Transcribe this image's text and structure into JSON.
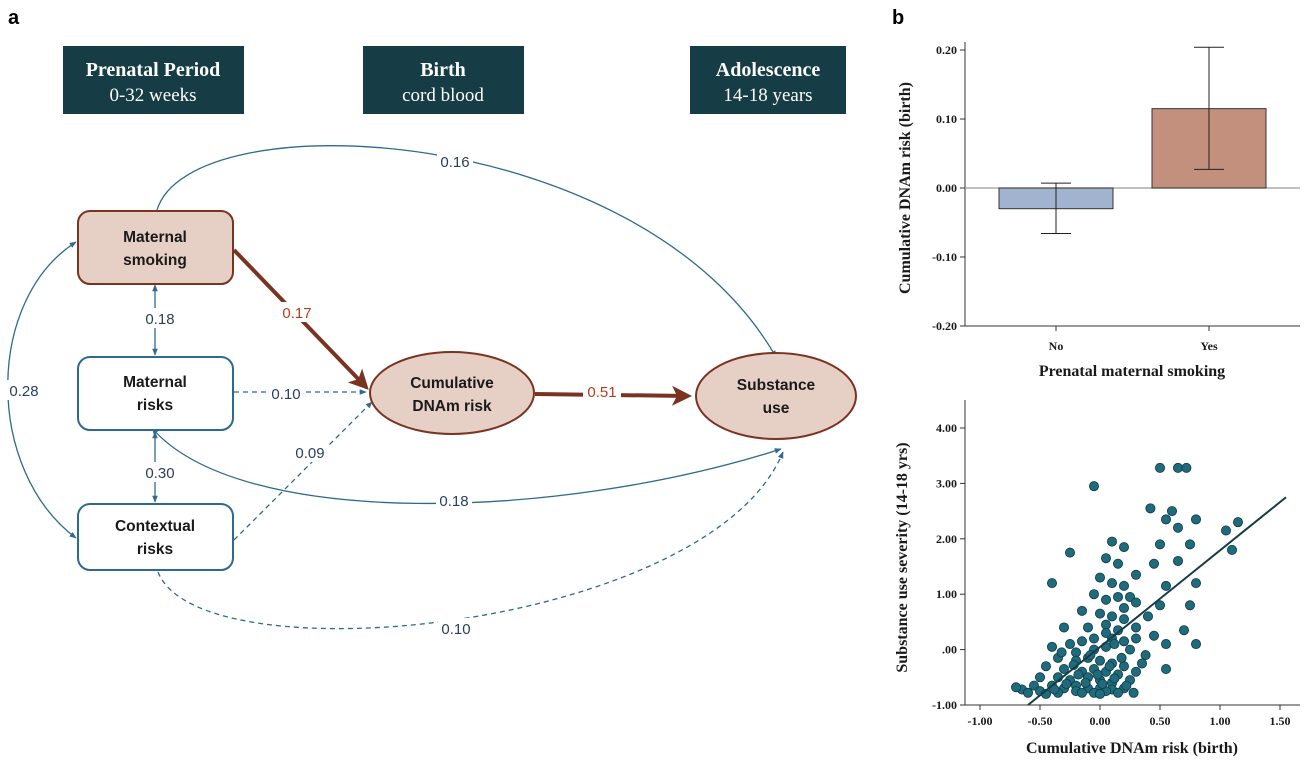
{
  "panels": {
    "a_label": "a",
    "b_label": "b"
  },
  "periods": [
    {
      "title": "Prenatal Period",
      "subtitle": "0-32 weeks"
    },
    {
      "title": "Birth",
      "subtitle": "cord blood"
    },
    {
      "title": "Adolescence",
      "subtitle": "14-18 years"
    }
  ],
  "nodes": {
    "maternal_smoking": [
      "Maternal",
      "smoking"
    ],
    "maternal_risks": [
      "Maternal",
      "risks"
    ],
    "contextual_risks": [
      "Contextual",
      "risks"
    ],
    "cumulative_dnam": [
      "Cumulative",
      "DNAm risk"
    ],
    "substance_use": [
      "Substance",
      "use"
    ]
  },
  "paths": {
    "smoking_to_substance": "0.16",
    "smoking_to_dnam": "0.17",
    "smoking_maternal_cov": "0.18",
    "smoking_contextual_cov": "0.28",
    "maternal_to_dnam": "0.10",
    "maternal_contextual_cov": "0.30",
    "contextual_to_dnam": "0.09",
    "maternal_to_substance": "0.18",
    "dnam_to_substance": "0.51",
    "contextual_to_substance": "0.10"
  },
  "colors": {
    "period_box": "#163d45",
    "red_node_fill": "#e6cfc4",
    "red_stroke": "#7b3321",
    "blue_stroke": "#2e6a8e",
    "bar_no": "#a2b3d0",
    "bar_yes": "#c3907d",
    "point": "#1f6b7c"
  },
  "chart_data": [
    {
      "type": "bar",
      "categories": [
        "No",
        "Yes"
      ],
      "values": [
        -0.03,
        0.115
      ],
      "error_low": [
        -0.066,
        0.027
      ],
      "error_high": [
        0.007,
        0.204
      ],
      "xlabel": "Prenatal maternal smoking",
      "ylabel": "Cumulative DNAm risk (birth)",
      "ylim": [
        -0.2,
        0.2
      ],
      "yticks": [
        "0.20",
        "0.10",
        "0.00",
        "-0.10",
        "-0.20"
      ],
      "grid": false
    },
    {
      "type": "scatter",
      "xlabel": "Cumulative DNAm risk (birth)",
      "ylabel": "Substance use severity (14-18 yrs)",
      "xlim": [
        -1.0,
        1.5
      ],
      "ylim": [
        -1.0,
        4.0
      ],
      "xticks": [
        "-1.00",
        "-0.50",
        "0.00",
        "0.50",
        "1.00",
        "1.50"
      ],
      "yticks": [
        "4.00",
        "3.00",
        "2.00",
        "1.00",
        ".00",
        "-1.00"
      ],
      "fit_line": [
        [
          -0.6,
          -1.0
        ],
        [
          1.55,
          2.75
        ]
      ],
      "points": [
        [
          0.5,
          3.28
        ],
        [
          0.65,
          3.28
        ],
        [
          0.72,
          3.28
        ],
        [
          -0.05,
          2.95
        ],
        [
          0.42,
          2.55
        ],
        [
          0.6,
          2.5
        ],
        [
          0.55,
          2.35
        ],
        [
          0.8,
          2.35
        ],
        [
          0.65,
          2.2
        ],
        [
          1.15,
          2.3
        ],
        [
          1.05,
          2.15
        ],
        [
          0.1,
          1.95
        ],
        [
          0.2,
          1.85
        ],
        [
          0.5,
          1.9
        ],
        [
          0.75,
          1.9
        ],
        [
          1.1,
          1.8
        ],
        [
          -0.25,
          1.75
        ],
        [
          0.05,
          1.65
        ],
        [
          0.15,
          1.55
        ],
        [
          0.45,
          1.55
        ],
        [
          0.65,
          1.6
        ],
        [
          0.3,
          1.35
        ],
        [
          0.0,
          1.3
        ],
        [
          0.1,
          1.2
        ],
        [
          -0.4,
          1.2
        ],
        [
          0.2,
          1.15
        ],
        [
          0.55,
          1.15
        ],
        [
          0.8,
          1.2
        ],
        [
          0.25,
          0.95
        ],
        [
          0.05,
          0.9
        ],
        [
          -0.05,
          1.0
        ],
        [
          0.15,
          0.95
        ],
        [
          0.3,
          0.85
        ],
        [
          0.5,
          0.8
        ],
        [
          0.75,
          0.8
        ],
        [
          -0.15,
          0.7
        ],
        [
          0.0,
          0.65
        ],
        [
          0.1,
          0.6
        ],
        [
          0.2,
          0.55
        ],
        [
          -0.3,
          0.4
        ],
        [
          -0.1,
          0.4
        ],
        [
          0.05,
          0.45
        ],
        [
          0.15,
          0.35
        ],
        [
          0.3,
          0.4
        ],
        [
          0.45,
          0.25
        ],
        [
          0.55,
          0.1
        ],
        [
          0.8,
          0.1
        ],
        [
          0.7,
          0.35
        ],
        [
          -0.4,
          0.05
        ],
        [
          -0.25,
          0.1
        ],
        [
          -0.15,
          0.15
        ],
        [
          -0.05,
          0.2
        ],
        [
          0.1,
          0.2
        ],
        [
          0.2,
          0.15
        ],
        [
          -0.2,
          -0.05
        ],
        [
          -0.05,
          0.0
        ],
        [
          0.05,
          0.05
        ],
        [
          0.25,
          0.0
        ],
        [
          -0.35,
          -0.15
        ],
        [
          -0.2,
          -0.2
        ],
        [
          -0.1,
          -0.15
        ],
        [
          0.0,
          -0.2
        ],
        [
          0.1,
          -0.25
        ],
        [
          0.2,
          -0.3
        ],
        [
          0.35,
          -0.25
        ],
        [
          0.55,
          -0.35
        ],
        [
          -0.45,
          -0.3
        ],
        [
          -0.3,
          -0.35
        ],
        [
          -0.15,
          -0.4
        ],
        [
          -0.05,
          -0.35
        ],
        [
          0.05,
          -0.4
        ],
        [
          0.15,
          -0.45
        ],
        [
          0.3,
          -0.4
        ],
        [
          -0.5,
          -0.5
        ],
        [
          -0.35,
          -0.5
        ],
        [
          -0.25,
          -0.55
        ],
        [
          -0.1,
          -0.5
        ],
        [
          0.0,
          -0.55
        ],
        [
          0.1,
          -0.6
        ],
        [
          0.25,
          -0.55
        ],
        [
          -0.55,
          -0.65
        ],
        [
          -0.4,
          -0.65
        ],
        [
          -0.3,
          -0.7
        ],
        [
          -0.2,
          -0.65
        ],
        [
          -0.1,
          -0.7
        ],
        [
          0.0,
          -0.7
        ],
        [
          0.1,
          -0.72
        ],
        [
          0.2,
          -0.7
        ],
        [
          -0.65,
          -0.72
        ],
        [
          -0.5,
          -0.75
        ],
        [
          -0.35,
          -0.78
        ],
        [
          -0.2,
          -0.75
        ],
        [
          -0.05,
          -0.78
        ],
        [
          0.05,
          -0.75
        ],
        [
          0.15,
          -0.78
        ],
        [
          -0.7,
          -0.68
        ],
        [
          -0.45,
          -0.8
        ],
        [
          -0.28,
          -0.62
        ],
        [
          -0.12,
          -0.6
        ],
        [
          0.02,
          -0.62
        ],
        [
          0.12,
          -0.52
        ],
        [
          -0.18,
          -0.45
        ],
        [
          -0.02,
          -0.45
        ],
        [
          0.08,
          -0.3
        ],
        [
          -0.22,
          -0.28
        ],
        [
          0.18,
          -0.15
        ],
        [
          0.38,
          -0.1
        ],
        [
          -0.32,
          -0.05
        ],
        [
          0.12,
          0.1
        ],
        [
          0.3,
          0.2
        ],
        [
          0.4,
          0.6
        ],
        [
          0.2,
          0.75
        ],
        [
          0.05,
          0.3
        ],
        [
          -0.08,
          -0.1
        ],
        [
          0.22,
          -0.65
        ],
        [
          -0.38,
          -0.72
        ],
        [
          -0.15,
          -0.78
        ],
        [
          0.28,
          -0.78
        ],
        [
          -0.6,
          -0.78
        ],
        [
          0.0,
          -0.8
        ]
      ]
    }
  ]
}
